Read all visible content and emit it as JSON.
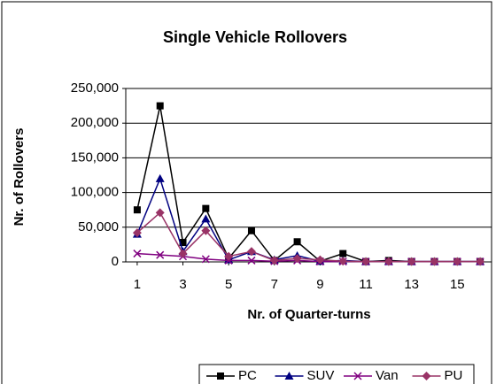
{
  "chart_data": {
    "type": "line",
    "title": "Single Vehicle Rollovers",
    "x_label": "Nr. of Quarter-turns",
    "y_label": "Nr. of Rollovers",
    "x": [
      1,
      2,
      3,
      4,
      5,
      6,
      7,
      8,
      9,
      10,
      11,
      12,
      13,
      14,
      15,
      16
    ],
    "xlim": [
      0.5,
      16.5
    ],
    "xticks": [
      1,
      3,
      5,
      7,
      9,
      11,
      13,
      15
    ],
    "ylim": [
      0,
      250000
    ],
    "yticks": [
      0,
      {
        "value": 50000,
        "label": "50,000"
      },
      {
        "value": 100000,
        "label": "100,000"
      },
      {
        "value": 150000,
        "label": "150,000"
      },
      {
        "value": 200000,
        "label": "200,000"
      },
      {
        "value": 250000,
        "label": "250,000"
      }
    ],
    "grid": true,
    "legend": "bottom",
    "series": [
      {
        "name": "PC",
        "color": "#000000",
        "marker": "square",
        "values": [
          75000,
          225000,
          28000,
          77000,
          5000,
          45000,
          2000,
          29000,
          1000,
          12000,
          500,
          2000,
          500,
          500,
          500,
          500
        ]
      },
      {
        "name": "SUV",
        "color": "#000080",
        "marker": "triangle",
        "values": [
          40000,
          120000,
          15000,
          62000,
          3000,
          15000,
          3000,
          9000,
          1000,
          2000,
          500,
          500,
          500,
          500,
          500,
          500
        ]
      },
      {
        "name": "Van",
        "color": "#800080",
        "marker": "x",
        "values": [
          12000,
          10000,
          8000,
          4000,
          2000,
          2000,
          1000,
          2000,
          500,
          500,
          500,
          500,
          500,
          500,
          500,
          500
        ]
      },
      {
        "name": "PU",
        "color": "#993366",
        "marker": "diamond",
        "values": [
          42000,
          71000,
          12000,
          45000,
          8000,
          15000,
          2000,
          5000,
          3000,
          1000,
          500,
          500,
          500,
          500,
          500,
          500
        ]
      }
    ]
  }
}
